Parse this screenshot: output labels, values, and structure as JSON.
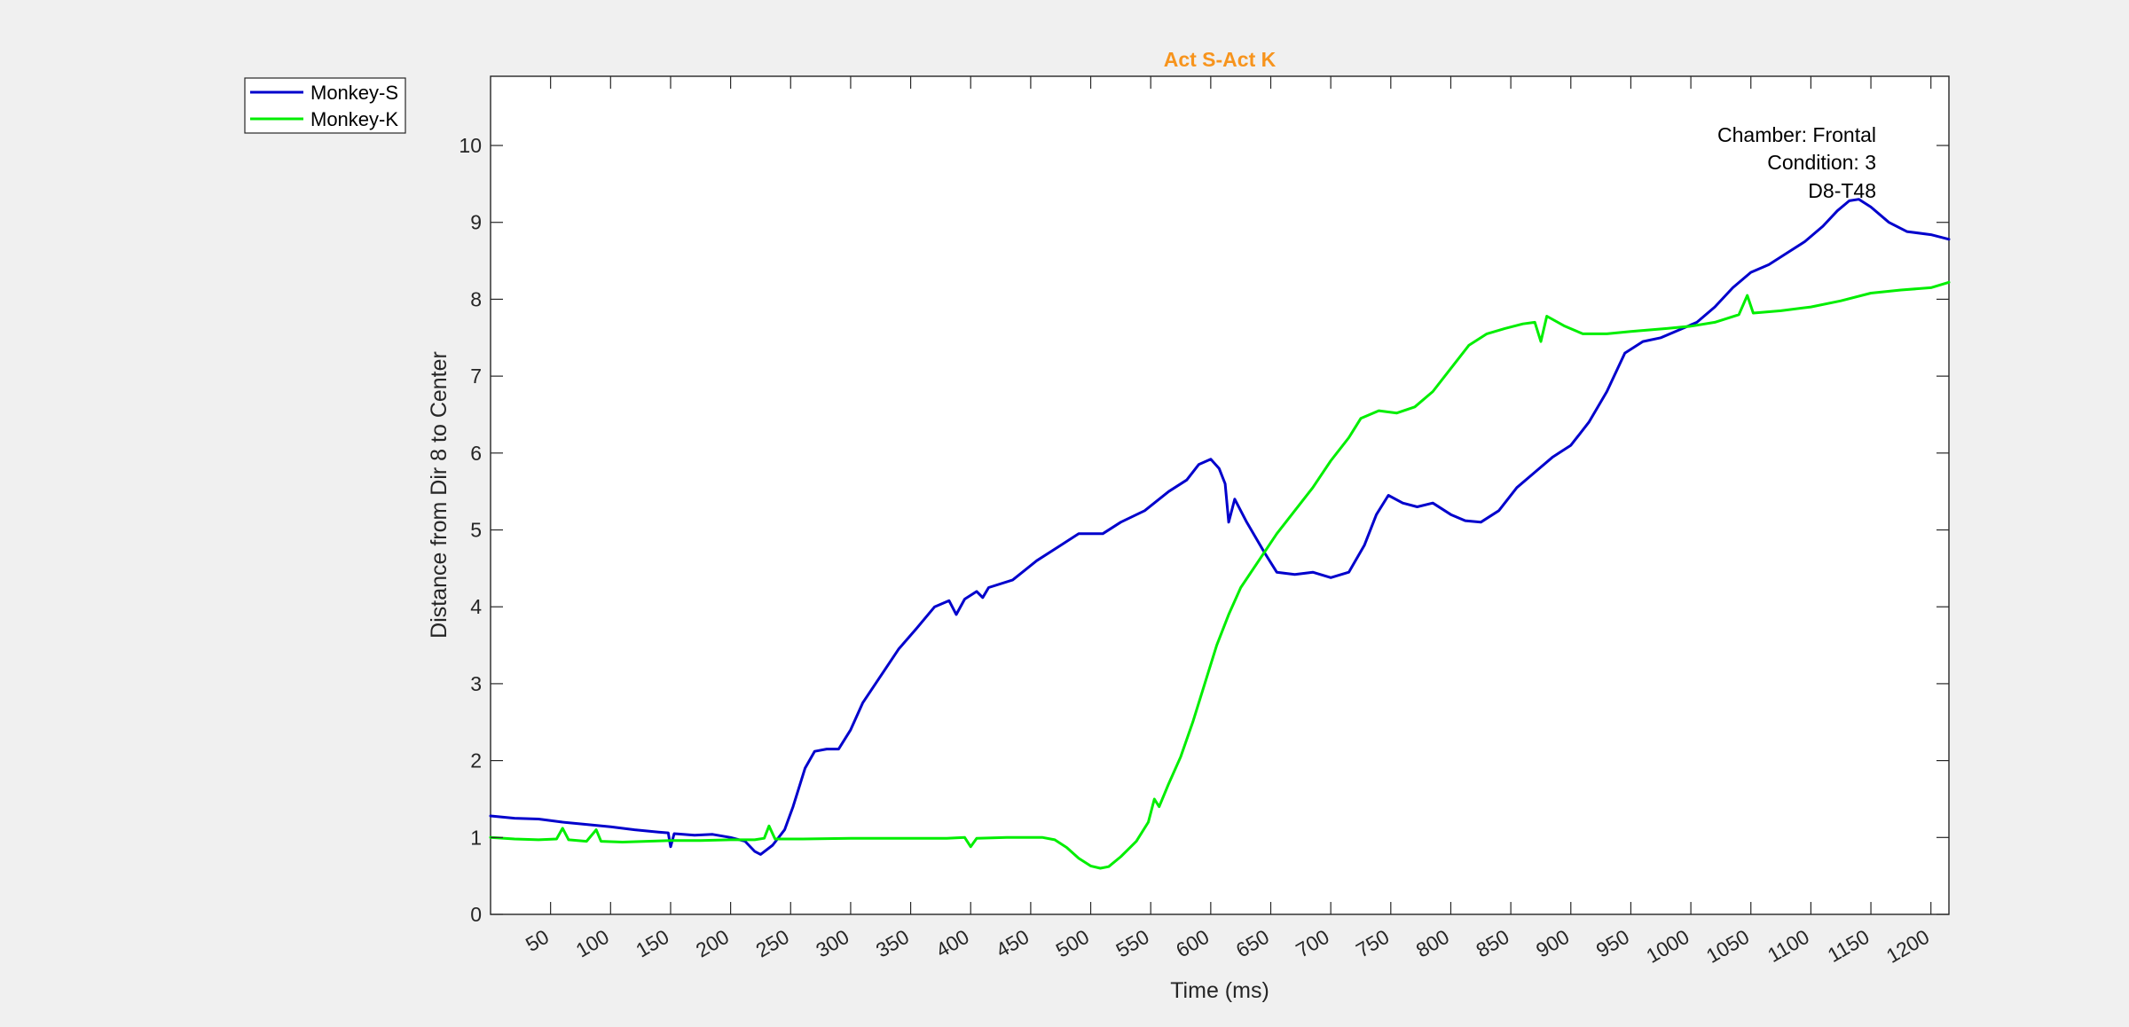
{
  "chart_data": {
    "type": "line",
    "title": "Act S-Act K",
    "xlabel": "Time (ms)",
    "ylabel": "Distance from Dir 8 to Center",
    "xlim": [
      0,
      1215
    ],
    "ylim": [
      0,
      10.9
    ],
    "x_ticks": [
      50,
      100,
      150,
      200,
      250,
      300,
      350,
      400,
      450,
      500,
      550,
      600,
      650,
      700,
      750,
      800,
      850,
      900,
      950,
      1000,
      1050,
      1100,
      1150,
      1200
    ],
    "y_ticks": [
      0,
      1,
      2,
      3,
      4,
      5,
      6,
      7,
      8,
      9,
      10
    ],
    "grid": false,
    "legend_position": "outside-top-left",
    "annotations": [
      "Chamber: Frontal",
      "Condition: 3",
      "D8-T48"
    ],
    "colors": {
      "title": "#f7941d",
      "axes": "#262626",
      "background": "#f0f0f0"
    },
    "series": [
      {
        "name": "Monkey-S",
        "color": "#0000cc",
        "points": [
          [
            0,
            1.28
          ],
          [
            20,
            1.25
          ],
          [
            40,
            1.24
          ],
          [
            60,
            1.2
          ],
          [
            80,
            1.17
          ],
          [
            100,
            1.14
          ],
          [
            120,
            1.1
          ],
          [
            140,
            1.07
          ],
          [
            148,
            1.06
          ],
          [
            150,
            0.88
          ],
          [
            153,
            1.05
          ],
          [
            170,
            1.03
          ],
          [
            185,
            1.04
          ],
          [
            200,
            1.0
          ],
          [
            212,
            0.95
          ],
          [
            220,
            0.82
          ],
          [
            225,
            0.78
          ],
          [
            235,
            0.9
          ],
          [
            245,
            1.1
          ],
          [
            252,
            1.4
          ],
          [
            262,
            1.9
          ],
          [
            270,
            2.12
          ],
          [
            280,
            2.15
          ],
          [
            290,
            2.15
          ],
          [
            300,
            2.4
          ],
          [
            310,
            2.75
          ],
          [
            325,
            3.1
          ],
          [
            340,
            3.45
          ],
          [
            355,
            3.72
          ],
          [
            370,
            4.0
          ],
          [
            382,
            4.08
          ],
          [
            388,
            3.9
          ],
          [
            395,
            4.1
          ],
          [
            405,
            4.2
          ],
          [
            410,
            4.12
          ],
          [
            415,
            4.25
          ],
          [
            435,
            4.35
          ],
          [
            455,
            4.6
          ],
          [
            475,
            4.8
          ],
          [
            490,
            4.95
          ],
          [
            510,
            4.95
          ],
          [
            525,
            5.1
          ],
          [
            545,
            5.25
          ],
          [
            565,
            5.5
          ],
          [
            580,
            5.65
          ],
          [
            590,
            5.85
          ],
          [
            600,
            5.92
          ],
          [
            607,
            5.8
          ],
          [
            612,
            5.6
          ],
          [
            615,
            5.1
          ],
          [
            620,
            5.4
          ],
          [
            630,
            5.1
          ],
          [
            645,
            4.7
          ],
          [
            655,
            4.45
          ],
          [
            670,
            4.42
          ],
          [
            685,
            4.45
          ],
          [
            700,
            4.38
          ],
          [
            715,
            4.45
          ],
          [
            728,
            4.8
          ],
          [
            738,
            5.2
          ],
          [
            748,
            5.45
          ],
          [
            760,
            5.35
          ],
          [
            772,
            5.3
          ],
          [
            785,
            5.35
          ],
          [
            800,
            5.2
          ],
          [
            812,
            5.12
          ],
          [
            825,
            5.1
          ],
          [
            840,
            5.25
          ],
          [
            855,
            5.55
          ],
          [
            870,
            5.75
          ],
          [
            885,
            5.95
          ],
          [
            900,
            6.1
          ],
          [
            915,
            6.4
          ],
          [
            930,
            6.8
          ],
          [
            945,
            7.3
          ],
          [
            960,
            7.45
          ],
          [
            975,
            7.5
          ],
          [
            990,
            7.6
          ],
          [
            1005,
            7.7
          ],
          [
            1020,
            7.9
          ],
          [
            1035,
            8.15
          ],
          [
            1050,
            8.35
          ],
          [
            1065,
            8.45
          ],
          [
            1080,
            8.6
          ],
          [
            1095,
            8.75
          ],
          [
            1110,
            8.95
          ],
          [
            1122,
            9.15
          ],
          [
            1132,
            9.28
          ],
          [
            1140,
            9.3
          ],
          [
            1150,
            9.2
          ],
          [
            1165,
            9.0
          ],
          [
            1180,
            8.88
          ],
          [
            1200,
            8.84
          ],
          [
            1215,
            8.78
          ]
        ]
      },
      {
        "name": "Monkey-K",
        "color": "#00ee00",
        "points": [
          [
            0,
            1.0
          ],
          [
            20,
            0.98
          ],
          [
            40,
            0.97
          ],
          [
            55,
            0.98
          ],
          [
            60,
            1.12
          ],
          [
            65,
            0.97
          ],
          [
            80,
            0.95
          ],
          [
            88,
            1.1
          ],
          [
            92,
            0.95
          ],
          [
            110,
            0.94
          ],
          [
            130,
            0.95
          ],
          [
            150,
            0.96
          ],
          [
            175,
            0.96
          ],
          [
            200,
            0.97
          ],
          [
            220,
            0.97
          ],
          [
            228,
            0.99
          ],
          [
            232,
            1.15
          ],
          [
            237,
            0.98
          ],
          [
            260,
            0.98
          ],
          [
            300,
            0.99
          ],
          [
            350,
            0.99
          ],
          [
            380,
            0.99
          ],
          [
            395,
            1.0
          ],
          [
            400,
            0.88
          ],
          [
            405,
            0.99
          ],
          [
            430,
            1.0
          ],
          [
            460,
            1.0
          ],
          [
            470,
            0.97
          ],
          [
            480,
            0.87
          ],
          [
            490,
            0.73
          ],
          [
            500,
            0.63
          ],
          [
            508,
            0.6
          ],
          [
            515,
            0.62
          ],
          [
            525,
            0.75
          ],
          [
            538,
            0.95
          ],
          [
            548,
            1.2
          ],
          [
            553,
            1.5
          ],
          [
            557,
            1.4
          ],
          [
            565,
            1.7
          ],
          [
            575,
            2.05
          ],
          [
            585,
            2.5
          ],
          [
            595,
            3.0
          ],
          [
            605,
            3.5
          ],
          [
            615,
            3.9
          ],
          [
            625,
            4.25
          ],
          [
            640,
            4.6
          ],
          [
            655,
            4.95
          ],
          [
            670,
            5.25
          ],
          [
            685,
            5.55
          ],
          [
            700,
            5.9
          ],
          [
            715,
            6.2
          ],
          [
            725,
            6.45
          ],
          [
            740,
            6.55
          ],
          [
            755,
            6.52
          ],
          [
            770,
            6.6
          ],
          [
            785,
            6.8
          ],
          [
            800,
            7.1
          ],
          [
            815,
            7.4
          ],
          [
            830,
            7.55
          ],
          [
            845,
            7.62
          ],
          [
            860,
            7.68
          ],
          [
            870,
            7.7
          ],
          [
            875,
            7.45
          ],
          [
            880,
            7.78
          ],
          [
            895,
            7.65
          ],
          [
            910,
            7.55
          ],
          [
            930,
            7.55
          ],
          [
            950,
            7.58
          ],
          [
            980,
            7.62
          ],
          [
            1000,
            7.65
          ],
          [
            1020,
            7.7
          ],
          [
            1040,
            7.8
          ],
          [
            1047,
            8.05
          ],
          [
            1052,
            7.82
          ],
          [
            1075,
            7.85
          ],
          [
            1100,
            7.9
          ],
          [
            1125,
            7.98
          ],
          [
            1150,
            8.08
          ],
          [
            1175,
            8.12
          ],
          [
            1200,
            8.15
          ],
          [
            1215,
            8.22
          ]
        ]
      }
    ]
  }
}
